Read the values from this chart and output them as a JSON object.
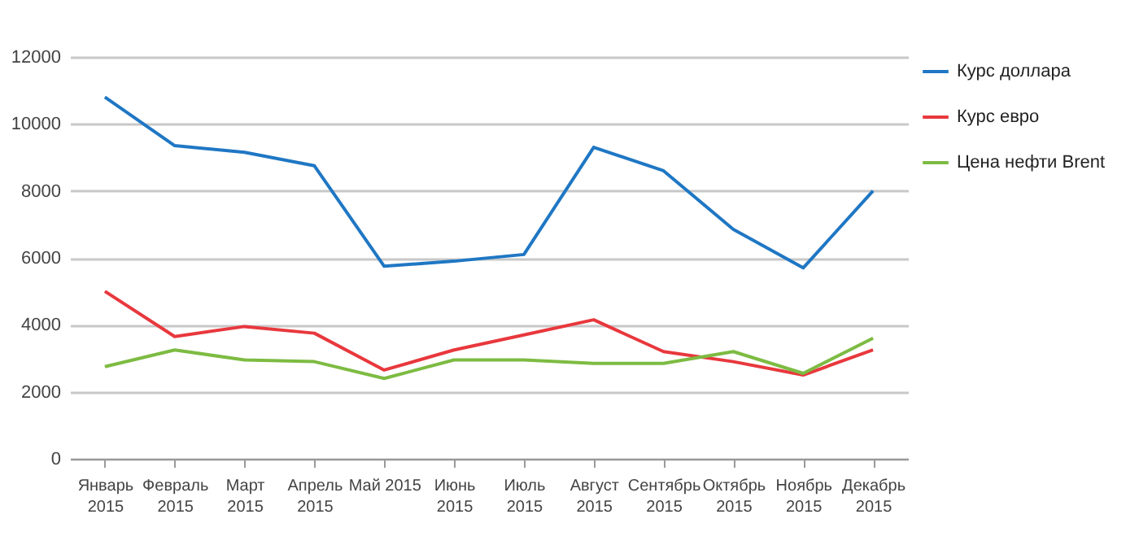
{
  "chart_data": {
    "type": "line",
    "categories": [
      "Январь 2015",
      "Февраль 2015",
      "Март 2015",
      "Апрель 2015",
      "Май 2015",
      "Июнь 2015",
      "Июль 2015",
      "Август 2015",
      "Сентябрь 2015",
      "Октябрь 2015",
      "Ноябрь 2015",
      "Декабрь 2015"
    ],
    "series": [
      {
        "name": "Курс доллара",
        "color": "#1f77c4",
        "values": [
          10800,
          9350,
          9150,
          8750,
          5750,
          5900,
          6100,
          9300,
          8600,
          6850,
          5700,
          8000
        ]
      },
      {
        "name": "Курс евро",
        "color": "#e8383d",
        "values": [
          5000,
          3650,
          3950,
          3750,
          2650,
          3250,
          3700,
          4150,
          3200,
          2900,
          2500,
          3250
        ]
      },
      {
        "name": "Цена нефти Brent",
        "color": "#7dbb42",
        "values": [
          2750,
          3250,
          2950,
          2900,
          2400,
          2950,
          2950,
          2850,
          2850,
          3200,
          2550,
          3600
        ]
      }
    ],
    "ylim": [
      0,
      12000
    ],
    "yticks": [
      0,
      2000,
      4000,
      6000,
      8000,
      10000,
      12000
    ],
    "grid": "y",
    "legend": "right"
  }
}
